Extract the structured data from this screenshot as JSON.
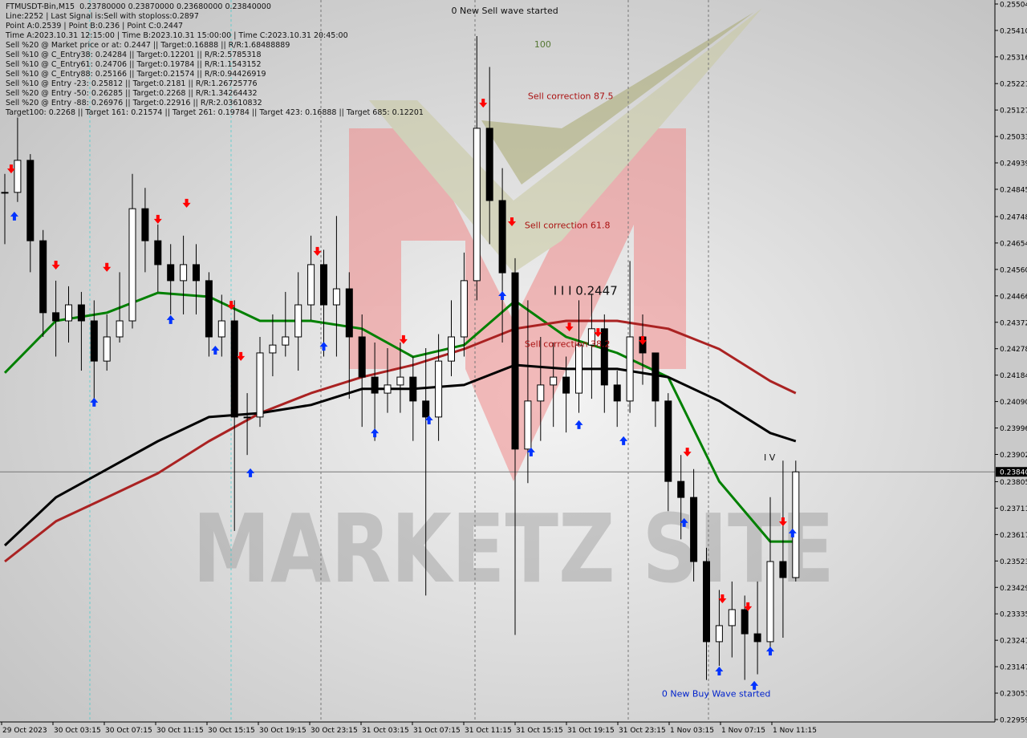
{
  "header": {
    "lines": [
      "FTMUSDT-Bin,M15  0.23780000 0.23870000 0.23680000 0.23840000",
      "Line:2252 | Last Signal is:Sell with stoploss:0.2897",
      "Point A:0.2539 | Point B:0.236 | Point C:0.2447",
      "Time A:2023.10.31 12:15:00 | Time B:2023.10.31 15:00:00 | Time C:2023.10.31 20:45:00",
      "Sell %20 @ Market price or at: 0.2447 || Target:0.16888 || R/R:1.68488889",
      "Sell %10 @ C_Entry38: 0.24284 || Target:0.12201 || R/R:2.5785318",
      "Sell %10 @ C_Entry61: 0.24706 || Target:0.19784 || R/R:1.1543152",
      "Sell %10 @ C_Entry88: 0.25166 || Target:0.21574 || R/R:0.94426919",
      "Sell %10 @ Entry -23: 0.25812 || Target:0.2181 || R/R:1.26725776",
      "Sell %20 @ Entry -50: 0.26285 || Target:0.2268 || R/R:1.34264432",
      "Sell %20 @ Entry -88: 0.26976 || Target:0.22916 || R/R:2.03610832",
      "Target100: 0.2268 || Target 161: 0.21574 || Target 261: 0.19784 || Target 423: 0.16888 || Target 685: 0.12201"
    ]
  },
  "watermark": "MARKETZ SITE",
  "colors": {
    "bull": "#000000",
    "bear": "#000000",
    "fast_ma": "#008000",
    "slow_ma": "#aa2222",
    "mid_ma": "#000000",
    "down_arrow": "#ff0000",
    "up_arrow": "#0033ff",
    "price_tag": "#000000"
  },
  "chart_data": {
    "type": "candlestick",
    "symbol": "FTMUSDT-Bin",
    "timeframe": "M15",
    "y_ticks": [
      "0.25504",
      "0.25410",
      "0.25316",
      "0.25221",
      "0.25127",
      "0.25033",
      "0.24939",
      "0.24845",
      "0.24748",
      "0.24654",
      "0.24560",
      "0.24466",
      "0.24372",
      "0.24278",
      "0.24184",
      "0.24090",
      "0.23996",
      "0.23902",
      "0.23805",
      "0.23711",
      "0.23617",
      "0.23523",
      "0.23429",
      "0.23335",
      "0.23241",
      "0.23147",
      "0.23053",
      "0.22959"
    ],
    "ylim": [
      0.22959,
      0.25504
    ],
    "x_ticks": [
      "29 Oct 2023",
      "30 Oct 03:15",
      "30 Oct 07:15",
      "30 Oct 11:15",
      "30 Oct 15:15",
      "30 Oct 19:15",
      "30 Oct 23:15",
      "31 Oct 03:15",
      "31 Oct 07:15",
      "31 Oct 11:15",
      "31 Oct 15:15",
      "31 Oct 19:15",
      "31 Oct 23:15",
      "1 Nov 03:15",
      "1 Nov 07:15",
      "1 Nov 11:15"
    ],
    "current_price": "0.23840",
    "close": [
      0.24834,
      0.24948,
      0.24662,
      0.24406,
      0.24377,
      0.24434,
      0.24377,
      0.24234,
      0.2432,
      0.24377,
      0.24776,
      0.24662,
      0.24577,
      0.2452,
      0.24577,
      0.2452,
      0.2432,
      0.24377,
      0.24035,
      0.24035,
      0.24263,
      0.24291,
      0.2432,
      0.24434,
      0.24577,
      0.24434,
      0.24491,
      0.2432,
      0.24177,
      0.2412,
      0.24149,
      0.24177,
      0.24092,
      0.24035,
      0.24234,
      0.2432,
      0.2452,
      0.25062,
      0.24805,
      0.24548,
      0.23921,
      0.24092,
      0.24149,
      0.24177,
      0.2412,
      0.24291,
      0.24349,
      0.24149,
      0.24092,
      0.2432,
      0.24263,
      0.24092,
      0.23806,
      0.23749,
      0.23521,
      0.23236,
      0.23293,
      0.2335,
      0.23264,
      0.23236,
      0.23521,
      0.23464,
      0.2384
    ],
    "high": [
      0.249,
      0.251,
      0.2497,
      0.247,
      0.2452,
      0.245,
      0.2448,
      0.2445,
      0.244,
      0.2455,
      0.249,
      0.2485,
      0.2472,
      0.2465,
      0.2468,
      0.2465,
      0.2455,
      0.2447,
      0.2445,
      0.2412,
      0.2432,
      0.244,
      0.2448,
      0.2455,
      0.2468,
      0.2463,
      0.2475,
      0.2455,
      0.244,
      0.243,
      0.2428,
      0.243,
      0.2425,
      0.2428,
      0.2433,
      0.2445,
      0.2462,
      0.2539,
      0.2528,
      0.2492,
      0.246,
      0.2445,
      0.2432,
      0.243,
      0.2425,
      0.2445,
      0.2447,
      0.244,
      0.242,
      0.2459,
      0.244,
      0.242,
      0.2412,
      0.239,
      0.2385,
      0.2357,
      0.2342,
      0.2345,
      0.234,
      0.2345,
      0.2375,
      0.2388,
      0.2388
    ],
    "low": [
      0.2465,
      0.248,
      0.2455,
      0.2432,
      0.2425,
      0.243,
      0.242,
      0.241,
      0.242,
      0.243,
      0.2435,
      0.2455,
      0.2448,
      0.244,
      0.244,
      0.244,
      0.2425,
      0.2425,
      0.2363,
      0.239,
      0.24,
      0.2418,
      0.2425,
      0.242,
      0.2438,
      0.2425,
      0.2425,
      0.241,
      0.24,
      0.2395,
      0.2405,
      0.2405,
      0.2395,
      0.234,
      0.2395,
      0.2418,
      0.2425,
      0.2445,
      0.2465,
      0.243,
      0.2326,
      0.238,
      0.2395,
      0.24,
      0.2398,
      0.2405,
      0.241,
      0.2405,
      0.24,
      0.2405,
      0.2415,
      0.24,
      0.237,
      0.236,
      0.2345,
      0.231,
      0.2315,
      0.2318,
      0.231,
      0.2312,
      0.232,
      0.2325,
      0.2345
    ],
    "moving_averages": [
      {
        "color": "#008000",
        "bars": [
          0,
          4,
          8,
          12,
          16,
          20,
          24,
          28,
          32,
          36,
          40,
          44,
          48,
          52,
          56,
          60,
          62
        ],
        "values": [
          0.24192,
          0.24377,
          0.24406,
          0.24477,
          0.24463,
          0.24377,
          0.24377,
          0.24349,
          0.24249,
          0.24291,
          0.24448,
          0.2432,
          0.24263,
          0.24177,
          0.23806,
          0.23592,
          0.23592
        ]
      },
      {
        "color": "#aa2222",
        "bars": [
          0,
          4,
          8,
          12,
          16,
          20,
          24,
          28,
          32,
          36,
          40,
          44,
          48,
          52,
          56,
          60,
          62
        ],
        "values": [
          0.23521,
          0.23664,
          0.23749,
          0.23835,
          0.23949,
          0.24049,
          0.2412,
          0.24177,
          0.2422,
          0.24277,
          0.24349,
          0.24377,
          0.24377,
          0.24349,
          0.24277,
          0.24163,
          0.2412
        ]
      },
      {
        "color": "#000000",
        "bars": [
          0,
          4,
          8,
          12,
          16,
          20,
          24,
          28,
          32,
          36,
          40,
          44,
          48,
          52,
          56,
          60,
          62
        ],
        "values": [
          0.23578,
          0.23749,
          0.23849,
          0.23949,
          0.24035,
          0.24049,
          0.24078,
          0.24135,
          0.24135,
          0.24149,
          0.2422,
          0.24206,
          0.24206,
          0.24177,
          0.24092,
          0.23978,
          0.23949
        ]
      }
    ],
    "sell_arrows": [
      [
        0.5,
        0.24913
      ],
      [
        4,
        0.24571
      ],
      [
        8,
        0.24563
      ],
      [
        12,
        0.24734
      ],
      [
        14.25,
        0.24791
      ],
      [
        17.75,
        0.24428
      ],
      [
        18.5,
        0.24246
      ],
      [
        24.5,
        0.2462
      ],
      [
        31.25,
        0.24306
      ],
      [
        37.5,
        0.25147
      ],
      [
        39.75,
        0.24725
      ],
      [
        44.25,
        0.24351
      ],
      [
        46.5,
        0.24331
      ],
      [
        50,
        0.24303
      ],
      [
        53.5,
        0.23906
      ],
      [
        56.25,
        0.23384
      ],
      [
        58.25,
        0.23356
      ],
      [
        61,
        0.23658
      ]
    ],
    "buy_arrows": [
      [
        0.75,
        0.24754
      ],
      [
        7,
        0.24092
      ],
      [
        13,
        0.24386
      ],
      [
        16.5,
        0.24277
      ],
      [
        19.25,
        0.23841
      ],
      [
        25,
        0.24291
      ],
      [
        29,
        0.23983
      ],
      [
        33.25,
        0.24029
      ],
      [
        39,
        0.24471
      ],
      [
        41.25,
        0.23915
      ],
      [
        45,
        0.24012
      ],
      [
        48.5,
        0.23955
      ],
      [
        53.25,
        0.23664
      ],
      [
        56,
        0.23136
      ],
      [
        58.75,
        0.23085
      ],
      [
        60,
        0.23207
      ],
      [
        61.75,
        0.23627
      ]
    ],
    "annotations": [
      {
        "text": "0 New Sell wave started",
        "bar": 35,
        "price": 0.2547,
        "color": "#111111"
      },
      {
        "text": "100",
        "bar": 41.5,
        "price": 0.2535,
        "color": "#557733"
      },
      {
        "text": "Sell correction 87.5",
        "bar": 41,
        "price": 0.25166,
        "color": "#aa1111"
      },
      {
        "text": "Sell correction 61.8",
        "bar": 40.75,
        "price": 0.24706,
        "color": "#aa1111"
      },
      {
        "text": "Sell correction 38.2",
        "bar": 40.75,
        "price": 0.24284,
        "color": "#aa1111"
      },
      {
        "text": "I I I 0.2447",
        "bar": 43,
        "price": 0.2447,
        "color": "#111111"
      },
      {
        "text": "I V",
        "bar": 59.5,
        "price": 0.2388,
        "color": "#111111"
      },
      {
        "text": "0 New Buy Wave started",
        "bar": 51.5,
        "price": 0.2304,
        "color": "#0022cc"
      }
    ]
  }
}
